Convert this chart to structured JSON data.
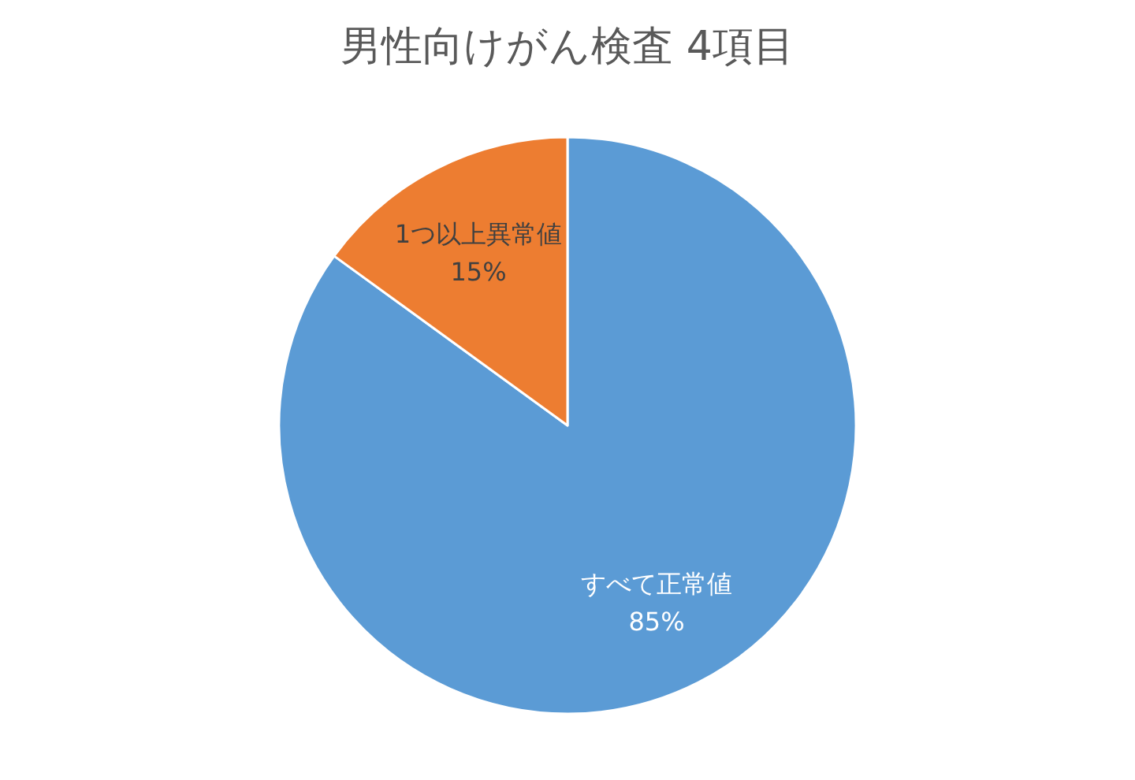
{
  "chart_data": {
    "type": "pie",
    "title": "男性向けがん検査 4項目",
    "categories": [
      "すべて正常値",
      "1つ以上異常値"
    ],
    "values": [
      85,
      15
    ],
    "colors": [
      "#5b9bd5",
      "#ed7d31"
    ],
    "value_labels": [
      "85%",
      "15%"
    ]
  }
}
